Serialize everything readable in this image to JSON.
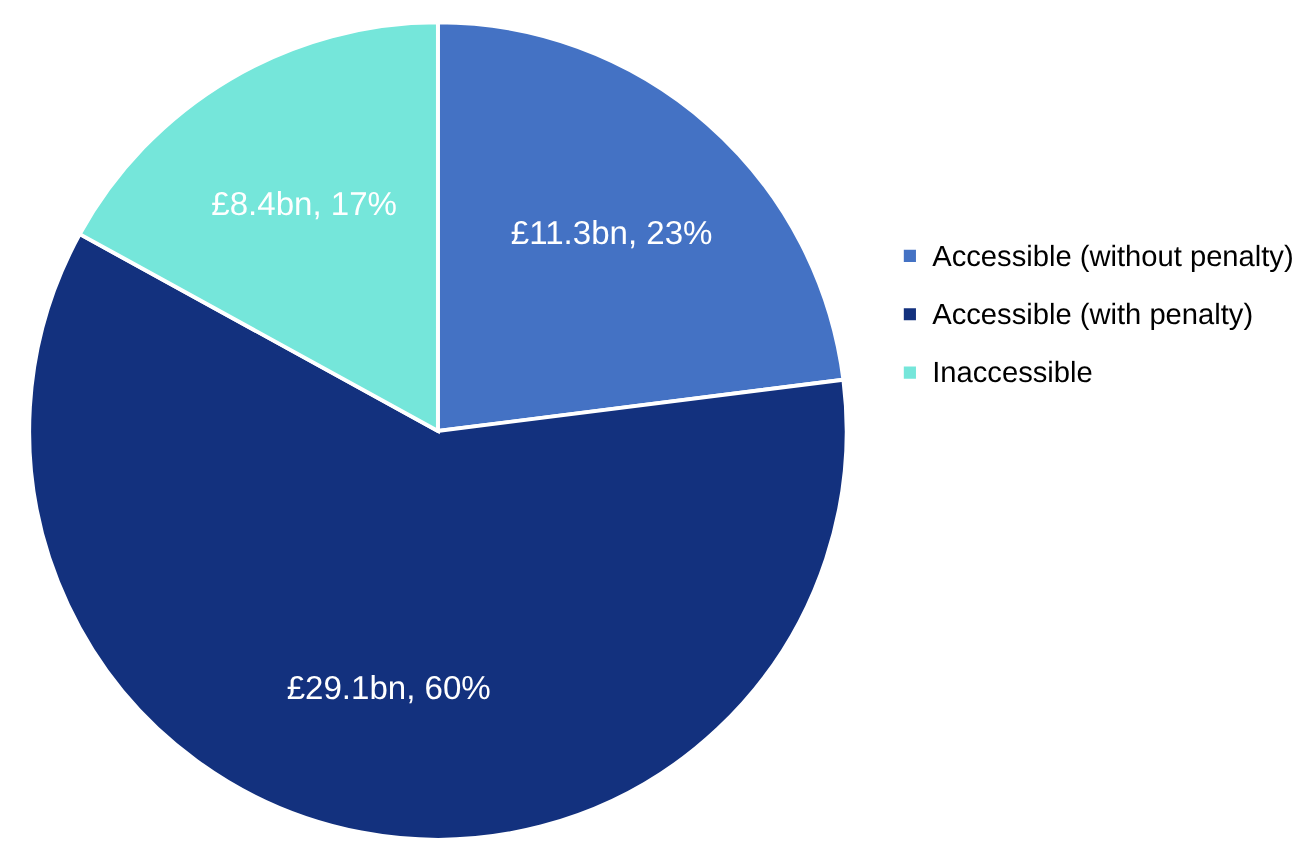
{
  "chart_data": {
    "type": "pie",
    "categories": [
      "Accessible (without penalty)",
      "Accessible (with penalty)",
      "Inaccessible"
    ],
    "values": [
      23,
      60,
      17
    ],
    "value_labels": [
      "£11.3bn, 23%",
      "£29.1bn, 60%",
      "£8.4bn, 17%"
    ],
    "colors": [
      "#4472c4",
      "#13317e",
      "#75e6da"
    ],
    "legend": "right"
  }
}
